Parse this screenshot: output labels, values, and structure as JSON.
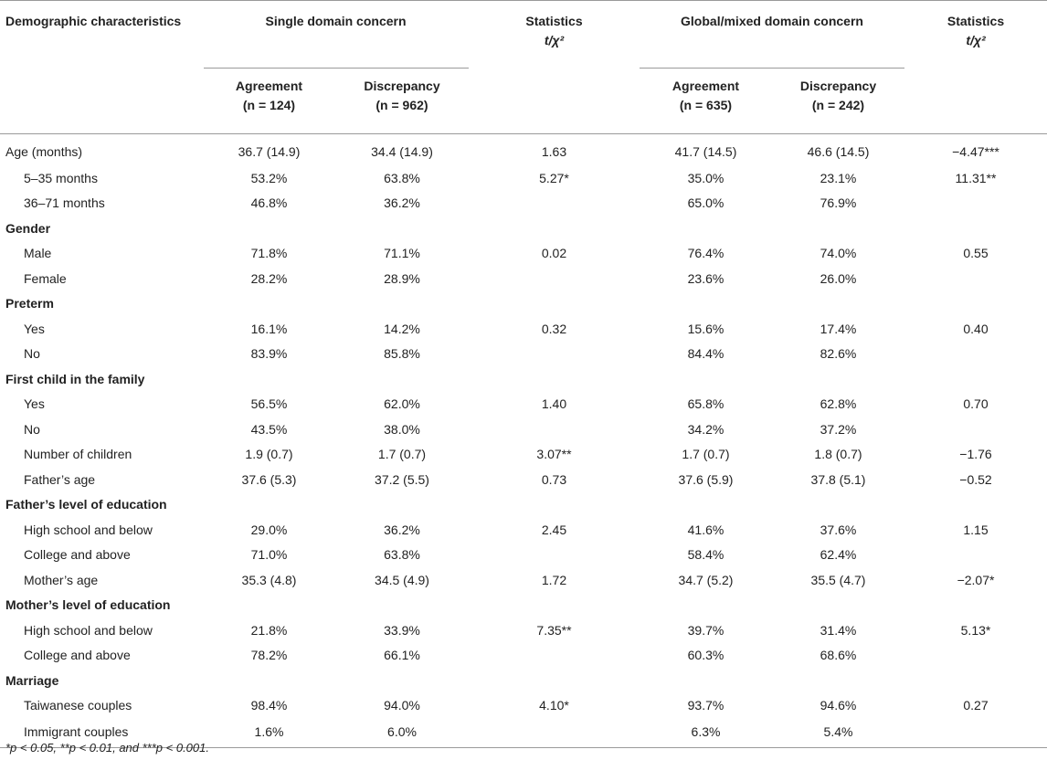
{
  "header": {
    "col0": "Demographic characteristics",
    "single": "Single domain concern",
    "global": "Global/mixed domain concern",
    "stats_line1": "Statistics",
    "stats_line2": "t/χ²",
    "agreement": "Agreement",
    "discrepancy": "Discrepancy",
    "n_single_agree": "(n = 124)",
    "n_single_disc": "(n = 962)",
    "n_global_agree": "(n = 635)",
    "n_global_disc": "(n = 242)"
  },
  "rows": [
    {
      "label": "Age (months)",
      "type": "plain",
      "sa": "36.7 (14.9)",
      "sd": "34.4 (14.9)",
      "s1": "1.63",
      "ga": "41.7 (14.5)",
      "gd": "46.6 (14.5)",
      "s2": "−4.47***"
    },
    {
      "label": "5–35 months",
      "type": "indent",
      "sa": "53.2%",
      "sd": "63.8%",
      "s1": "5.27*",
      "ga": "35.0%",
      "gd": "23.1%",
      "s2": "11.31**"
    },
    {
      "label": "36–71 months",
      "type": "indent",
      "sa": "46.8%",
      "sd": "36.2%",
      "s1": "",
      "ga": "65.0%",
      "gd": "76.9%",
      "s2": ""
    },
    {
      "label": "Gender",
      "type": "section",
      "sa": "",
      "sd": "",
      "s1": "",
      "ga": "",
      "gd": "",
      "s2": ""
    },
    {
      "label": "Male",
      "type": "indent",
      "sa": "71.8%",
      "sd": "71.1%",
      "s1": "0.02",
      "ga": "76.4%",
      "gd": "74.0%",
      "s2": "0.55"
    },
    {
      "label": "Female",
      "type": "indent",
      "sa": "28.2%",
      "sd": "28.9%",
      "s1": "",
      "ga": "23.6%",
      "gd": "26.0%",
      "s2": ""
    },
    {
      "label": "Preterm",
      "type": "section",
      "sa": "",
      "sd": "",
      "s1": "",
      "ga": "",
      "gd": "",
      "s2": ""
    },
    {
      "label": "Yes",
      "type": "indent",
      "sa": "16.1%",
      "sd": "14.2%",
      "s1": "0.32",
      "ga": "15.6%",
      "gd": "17.4%",
      "s2": "0.40"
    },
    {
      "label": "No",
      "type": "indent",
      "sa": "83.9%",
      "sd": "85.8%",
      "s1": "",
      "ga": "84.4%",
      "gd": "82.6%",
      "s2": ""
    },
    {
      "label": "First child in the family",
      "type": "section",
      "sa": "",
      "sd": "",
      "s1": "",
      "ga": "",
      "gd": "",
      "s2": ""
    },
    {
      "label": "Yes",
      "type": "indent",
      "sa": "56.5%",
      "sd": "62.0%",
      "s1": "1.40",
      "ga": "65.8%",
      "gd": "62.8%",
      "s2": "0.70"
    },
    {
      "label": "No",
      "type": "indent",
      "sa": "43.5%",
      "sd": "38.0%",
      "s1": "",
      "ga": "34.2%",
      "gd": "37.2%",
      "s2": ""
    },
    {
      "label": "Number of children",
      "type": "indent",
      "sa": "1.9 (0.7)",
      "sd": "1.7 (0.7)",
      "s1": "3.07**",
      "ga": "1.7 (0.7)",
      "gd": "1.8 (0.7)",
      "s2": "−1.76"
    },
    {
      "label": "Father’s age",
      "type": "indent",
      "sa": "37.6 (5.3)",
      "sd": "37.2 (5.5)",
      "s1": "0.73",
      "ga": "37.6 (5.9)",
      "gd": "37.8 (5.1)",
      "s2": "−0.52"
    },
    {
      "label": "Father’s level of education",
      "type": "section",
      "sa": "",
      "sd": "",
      "s1": "",
      "ga": "",
      "gd": "",
      "s2": ""
    },
    {
      "label": "High school and below",
      "type": "indent",
      "sa": "29.0%",
      "sd": "36.2%",
      "s1": "2.45",
      "ga": "41.6%",
      "gd": "37.6%",
      "s2": "1.15"
    },
    {
      "label": "College and above",
      "type": "indent",
      "sa": "71.0%",
      "sd": "63.8%",
      "s1": "",
      "ga": "58.4%",
      "gd": "62.4%",
      "s2": ""
    },
    {
      "label": "Mother’s age",
      "type": "indent",
      "sa": "35.3 (4.8)",
      "sd": "34.5 (4.9)",
      "s1": "1.72",
      "ga": "34.7 (5.2)",
      "gd": "35.5 (4.7)",
      "s2": "−2.07*"
    },
    {
      "label": "Mother’s level of education",
      "type": "section",
      "sa": "",
      "sd": "",
      "s1": "",
      "ga": "",
      "gd": "",
      "s2": ""
    },
    {
      "label": "High school and below",
      "type": "indent",
      "sa": "21.8%",
      "sd": "33.9%",
      "s1": "7.35**",
      "ga": "39.7%",
      "gd": "31.4%",
      "s2": "5.13*"
    },
    {
      "label": "College and above",
      "type": "indent",
      "sa": "78.2%",
      "sd": "66.1%",
      "s1": "",
      "ga": "60.3%",
      "gd": "68.6%",
      "s2": ""
    },
    {
      "label": "Marriage",
      "type": "section",
      "sa": "",
      "sd": "",
      "s1": "",
      "ga": "",
      "gd": "",
      "s2": ""
    },
    {
      "label": "Taiwanese couples",
      "type": "indent",
      "sa": "98.4%",
      "sd": "94.0%",
      "s1": "4.10*",
      "ga": "93.7%",
      "gd": "94.6%",
      "s2": "0.27"
    },
    {
      "label": "Immigrant couples",
      "type": "indent",
      "sa": "1.6%",
      "sd": "6.0%",
      "s1": "",
      "ga": "6.3%",
      "gd": "5.4%",
      "s2": ""
    }
  ],
  "footnote": "*p < 0.05, **p < 0.01, and ***p < 0.001."
}
